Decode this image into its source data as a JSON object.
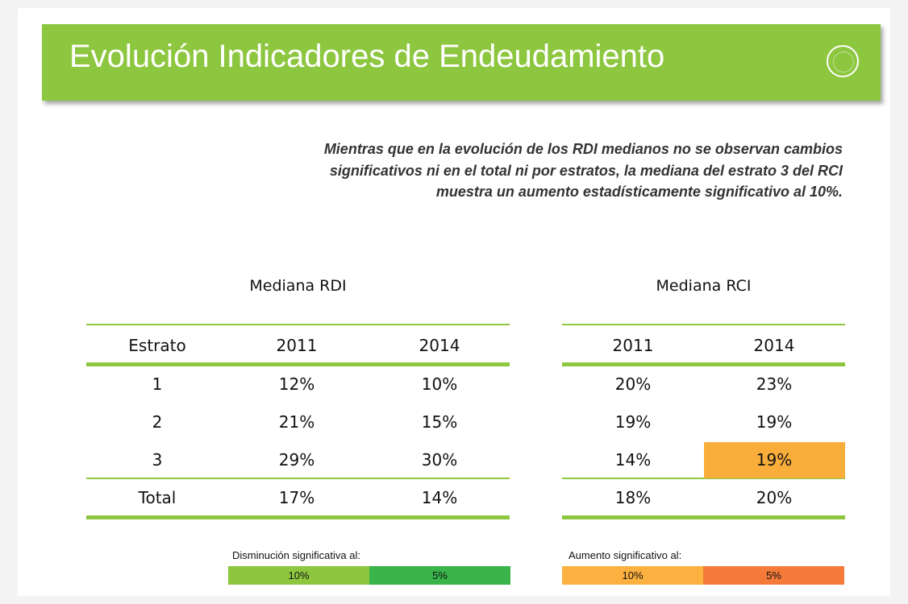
{
  "header": {
    "title": "Evolución Indicadores de Endeudamiento"
  },
  "summary": [
    "Mientras que en la evolución de los RDI medianos no se observan cambios",
    "significativos ni en el total ni por estratos, la mediana del estrato 3 del RCI",
    "muestra un aumento estadísticamente significativo al 10%."
  ],
  "tables": {
    "rdi": {
      "title": "Mediana RDI",
      "header": [
        "Estrato",
        "2011",
        "2014"
      ],
      "rows": [
        [
          "1",
          "12%",
          "10%"
        ],
        [
          "2",
          "21%",
          "15%"
        ],
        [
          "3",
          "29%",
          "30%"
        ],
        [
          "Total",
          "17%",
          "14%"
        ]
      ]
    },
    "rci": {
      "title": "Mediana RCI",
      "header": [
        "2011",
        "2014"
      ],
      "rows": [
        [
          "20%",
          "23%"
        ],
        [
          "19%",
          "19%"
        ],
        [
          "14%",
          "19%"
        ],
        [
          "18%",
          "20%"
        ]
      ]
    }
  },
  "legends": {
    "decrease": {
      "label": "Disminución significativa al:",
      "items": [
        "10%",
        "5%"
      ]
    },
    "increase": {
      "label": "Aumento significativo al:",
      "items": [
        "10%",
        "5%"
      ]
    }
  }
}
